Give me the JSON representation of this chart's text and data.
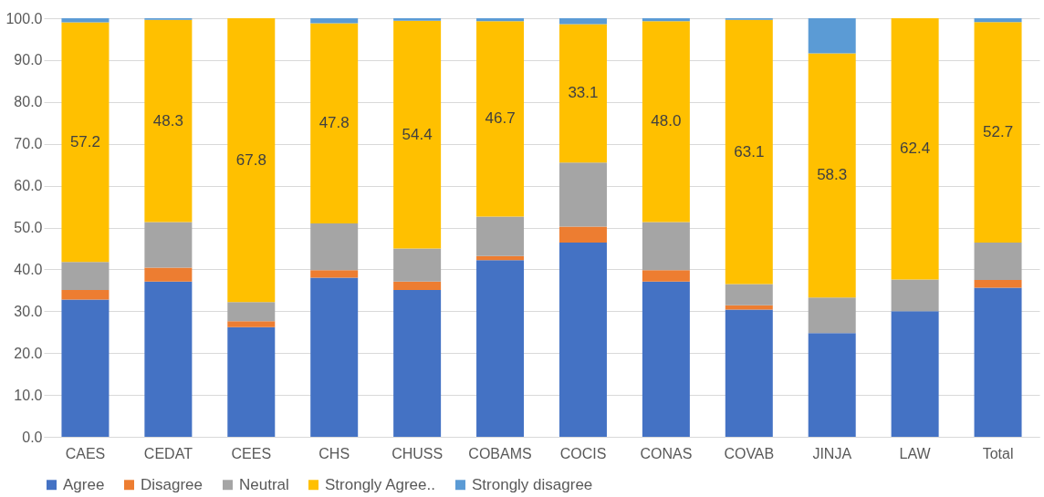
{
  "chart_data": {
    "type": "bar",
    "stacked": true,
    "categories": [
      "CAES",
      "CEDAT",
      "CEES",
      "CHS",
      "CHUSS",
      "COBAMS",
      "COCIS",
      "CONAS",
      "COVAB",
      "JINJA",
      "LAW",
      "Total"
    ],
    "series": [
      {
        "name": "Agree",
        "color": "#4472c4",
        "values": [
          32.8,
          37.1,
          26.2,
          38.0,
          35.1,
          42.2,
          46.4,
          37.1,
          30.4,
          24.8,
          30.0,
          35.6
        ]
      },
      {
        "name": "Disagree",
        "color": "#ed7d31",
        "values": [
          2.3,
          3.3,
          1.4,
          1.8,
          2.0,
          1.0,
          3.8,
          2.7,
          1.0,
          0,
          0,
          1.9
        ]
      },
      {
        "name": "Neutral",
        "color": "#a5a5a5",
        "values": [
          6.7,
          10.9,
          4.6,
          11.2,
          7.9,
          9.4,
          15.3,
          11.5,
          5.1,
          8.5,
          7.6,
          8.9
        ]
      },
      {
        "name": "Strongly Agree..",
        "color": "#ffc000",
        "values": [
          57.2,
          48.3,
          67.8,
          47.8,
          54.4,
          46.7,
          33.1,
          48.0,
          63.1,
          58.3,
          62.4,
          52.7
        ],
        "value_labels": [
          "57.2",
          "48.3",
          "67.8",
          "47.8",
          "54.4",
          "46.7",
          "33.1",
          "48.0",
          "63.1",
          "58.3",
          "62.4",
          "52.7"
        ]
      },
      {
        "name": "Strongly disagree",
        "color": "#5b9bd5",
        "values": [
          1.0,
          0.4,
          0,
          1.2,
          0.6,
          0.7,
          1.4,
          0.7,
          0.4,
          8.4,
          0,
          0.9
        ]
      }
    ],
    "ylim": [
      0,
      100
    ],
    "yticks": [
      {
        "value": 0,
        "label": "0.0"
      },
      {
        "value": 10,
        "label": "10.0"
      },
      {
        "value": 20,
        "label": "20.0"
      },
      {
        "value": 30,
        "label": "30.0"
      },
      {
        "value": 40,
        "label": "40.0"
      },
      {
        "value": 50,
        "label": "50.0"
      },
      {
        "value": 60,
        "label": "60.0"
      },
      {
        "value": 70,
        "label": "70.0"
      },
      {
        "value": 80,
        "label": "80.0"
      },
      {
        "value": 90,
        "label": "90.0"
      },
      {
        "value": 100,
        "label": "100.0"
      }
    ],
    "grid": "y",
    "legend": "bottom"
  }
}
